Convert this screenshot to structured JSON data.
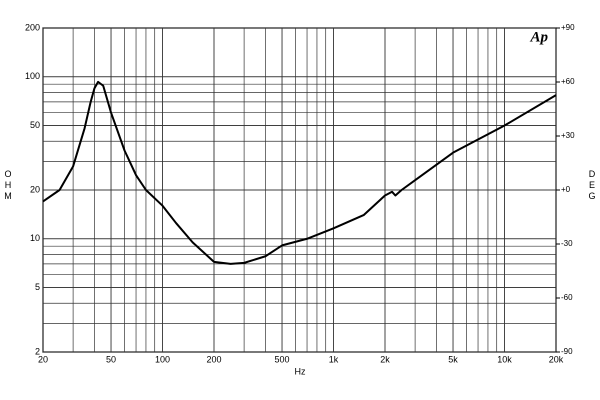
{
  "chart_data": {
    "type": "line",
    "x_scale": "log",
    "y_scale": "log",
    "grid": true,
    "minor_grid": true,
    "logo": "Ap",
    "x_label": "Hz",
    "y_label": "OHM",
    "y2_label": "DEG",
    "xlim": [
      20,
      20000
    ],
    "xticks": [
      20,
      50,
      100,
      200,
      500,
      {
        "value": 1000,
        "label": "1k"
      },
      {
        "value": 2000,
        "label": "2k"
      },
      {
        "value": 5000,
        "label": "5k"
      },
      {
        "value": 10000,
        "label": "10k"
      },
      {
        "value": 20000,
        "label": "20k"
      }
    ],
    "ylim": [
      2,
      200
    ],
    "yticks": [
      2,
      5,
      10,
      20,
      50,
      100,
      200
    ],
    "y2lim": [
      -90,
      90
    ],
    "y2ticks": [
      {
        "value": 90,
        "label": "+90"
      },
      {
        "value": 60,
        "label": "+60"
      },
      {
        "value": 30,
        "label": "+30"
      },
      {
        "value": 0,
        "label": "+0"
      },
      {
        "value": -30,
        "label": "-30"
      },
      {
        "value": -60,
        "label": "-60"
      },
      {
        "value": -90,
        "label": "-90"
      }
    ],
    "x": [
      20,
      25,
      30,
      35,
      38,
      40,
      42,
      45,
      50,
      60,
      70,
      80,
      100,
      120,
      150,
      200,
      250,
      300,
      400,
      500,
      700,
      1000,
      1500,
      2000,
      2200,
      2300,
      2500,
      3000,
      5000,
      10000,
      20000
    ],
    "series": [
      {
        "color": "#000000",
        "values": [
          17,
          20,
          28,
          48,
          70,
          85,
          93,
          88,
          60,
          35,
          24.7,
          20,
          16,
          12.5,
          9.5,
          7.2,
          7.0,
          7.1,
          7.8,
          9.1,
          10,
          11.6,
          14,
          18.5,
          19.5,
          18.5,
          20,
          23,
          34,
          50,
          77
        ]
      }
    ]
  }
}
